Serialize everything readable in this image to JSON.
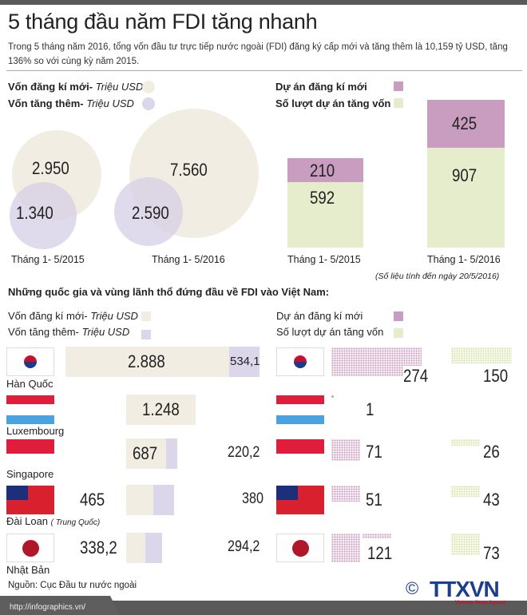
{
  "title": "5 tháng đầu năm FDI tăng nhanh",
  "subtitle": "Trong 5 tháng năm 2016, tổng vốn đầu tư trực tiếp nước ngoài (FDI) đăng ký cấp mới và tăng thêm là 10,159 tỷ USD, tăng 136% so với cùng kỳ năm 2015.",
  "colors": {
    "new_capital": "#f1ede2",
    "added_capital": "#dcd6ea",
    "new_projects": "#c99dbf",
    "capital_increase_projects": "#e6edcc"
  },
  "legend_top": {
    "new_capital": "Vốn đăng kí mới-",
    "added_capital": "Vốn tăng thêm-",
    "unit": "Triệu USD",
    "new_projects": "Dự án đăng kí mới",
    "increase_projects": "Số lượt dự án tăng vốn"
  },
  "chart_data": [
    {
      "type": "bubble",
      "categories": [
        "Tháng 1- 5/2015",
        "Tháng 1- 5/2016"
      ],
      "series": [
        {
          "name": "Vốn đăng kí mới- Triệu USD",
          "values": [
            "2.950",
            "7.560"
          ]
        },
        {
          "name": "Vốn tăng thêm- Triệu USD",
          "values": [
            "1.340",
            "2.590"
          ]
        }
      ]
    },
    {
      "type": "bar",
      "stacked": true,
      "categories": [
        "Tháng 1- 5/2015",
        "Tháng 1- 5/2016"
      ],
      "series": [
        {
          "name": "Dự án đăng kí mới",
          "values": [
            210,
            425
          ]
        },
        {
          "name": "Số lượt dự án tăng vốn",
          "values": [
            592,
            907
          ]
        }
      ]
    }
  ],
  "periods": [
    "Tháng 1- 5/2015",
    "Tháng 1- 5/2016"
  ],
  "bubbles": {
    "y2015": {
      "new": "2.950",
      "added": "1.340"
    },
    "y2016": {
      "new": "7.560",
      "added": "2.590"
    }
  },
  "bars": {
    "y2015": {
      "new": "210",
      "inc": "592"
    },
    "y2016": {
      "new": "425",
      "inc": "907"
    }
  },
  "note": "(Số liệu tính đến ngày 20/5/2016)",
  "section_title": "Những quốc gia và vùng lãnh thổ đứng đầu về FDI vào Việt Nam:",
  "countries": [
    {
      "name": "Hàn Quốc",
      "new_capital": "2.888",
      "added_capital": "534,1",
      "new_projects": "274",
      "increase_projects": "150"
    },
    {
      "name": "Luxembourg",
      "new_capital": "1.248",
      "added_capital": "",
      "new_projects": "1",
      "increase_projects": ""
    },
    {
      "name": "Singapore",
      "new_capital": "687",
      "added_capital": "220,2",
      "new_projects": "71",
      "increase_projects": "26"
    },
    {
      "name": "Đài Loan",
      "name_note": "( Trung Quốc)",
      "new_capital": "465",
      "added_capital": "380",
      "new_projects": "51",
      "increase_projects": "43"
    },
    {
      "name": "Nhật Bản",
      "new_capital": "338,2",
      "added_capital": "294,2",
      "new_projects": "121",
      "increase_projects": "73"
    }
  ],
  "source": "Nguồn: Cục Đầu tư nước ngoài",
  "url": "http://infographics.vn/",
  "logo": {
    "text": "TTXVN",
    "tagline": "Vietnam News Agency",
    "copyright": "©"
  }
}
